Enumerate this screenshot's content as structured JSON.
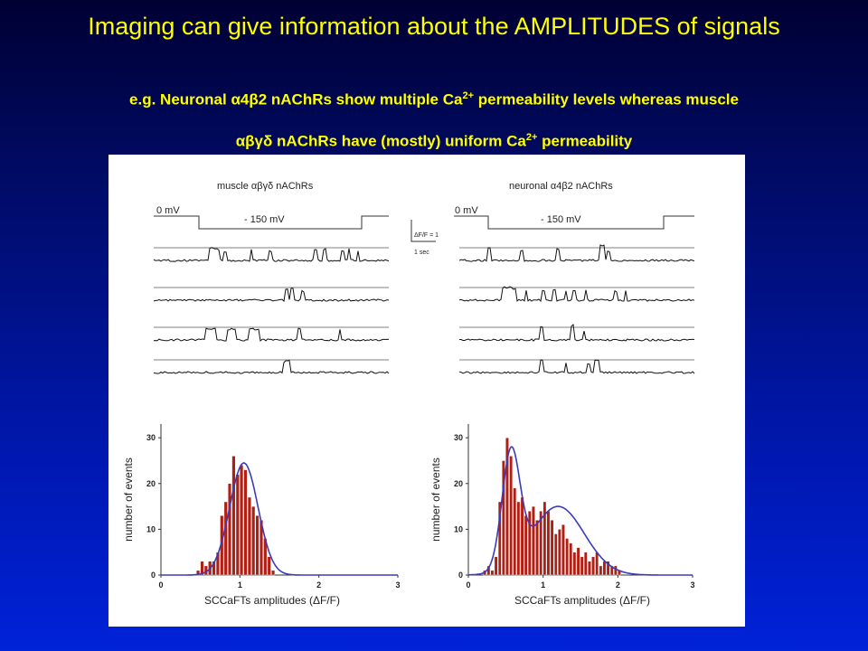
{
  "slide": {
    "title": "Imaging can give information about the AMPLITUDES of signals",
    "subtitle": {
      "line1_prefix": "e.g. Neuronal α4β2 nAChRs show multiple Ca",
      "line1_sup": "2+",
      "line1_suffix": " permeability levels whereas muscle",
      "line2_prefix": "αβγδ nAChRs have (mostly) uniform Ca",
      "line2_sup": "2+",
      "line2_suffix": " permeability"
    }
  },
  "traces": {
    "left_label": "muscle αβγδ nAChRs",
    "right_label": "neuronal α4β2 nAChRs",
    "holding_label": "0 mV",
    "step_label": "- 150 mV",
    "scale_y_label": "ΔF/F = 1",
    "scale_x_label": "1 sec"
  },
  "chart_data": [
    {
      "type": "bar",
      "xlabel": "SCCaFTs amplitudes (ΔF/F)",
      "ylabel": "number of events",
      "xlim": [
        0,
        3
      ],
      "ylim": [
        0,
        33
      ],
      "xticks": [
        "0",
        "1",
        "2",
        "3"
      ],
      "yticks": [
        "0",
        "10",
        "20",
        "30"
      ],
      "bin_start": 0.45,
      "bin_width": 0.05,
      "values": [
        1,
        3,
        2,
        3,
        3,
        5,
        13,
        16,
        20,
        26,
        22,
        24,
        23,
        17,
        15,
        13,
        12,
        8,
        4,
        1
      ],
      "fit": {
        "components": [
          {
            "amplitude": 24.5,
            "center": 1.05,
            "sigma": 0.18
          }
        ]
      },
      "colors": {
        "bars": "#b01f14",
        "fit": "#3b3bb8"
      }
    },
    {
      "type": "bar",
      "xlabel": "SCCaFTs amplitudes (ΔF/F)",
      "ylabel": "number of events",
      "xlim": [
        0,
        3
      ],
      "ylim": [
        0,
        33
      ],
      "xticks": [
        "0",
        "1",
        "2",
        "3"
      ],
      "yticks": [
        "0",
        "10",
        "20",
        "30"
      ],
      "bin_start": 0.2,
      "bin_width": 0.05,
      "values": [
        1,
        2,
        1,
        4,
        16,
        25,
        30,
        26,
        19,
        16,
        17,
        13,
        14,
        15,
        12,
        14,
        16,
        14,
        12,
        9,
        10,
        11,
        8,
        7,
        5,
        6,
        4,
        5,
        3,
        4,
        5,
        2,
        3,
        3,
        2,
        2,
        1
      ],
      "fit": {
        "components": [
          {
            "amplitude": 25,
            "center": 0.57,
            "sigma": 0.12
          },
          {
            "amplitude": 15,
            "center": 1.2,
            "sigma": 0.35
          }
        ]
      },
      "colors": {
        "bars": "#b01f14",
        "fit": "#3b3bb8"
      }
    }
  ]
}
